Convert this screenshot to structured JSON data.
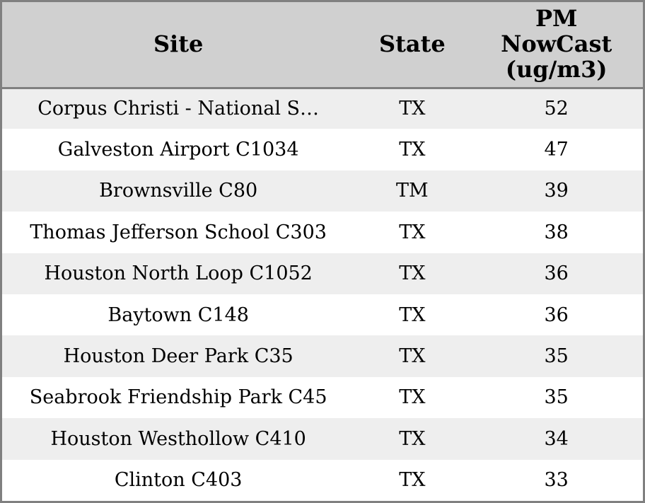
{
  "colors": {
    "header_bg": "#d0d0d0",
    "row_alt_bg": "#eeeeee",
    "row_bg": "#ffffff",
    "border": "#808080",
    "text": "#000000"
  },
  "chart_data": {
    "type": "table",
    "columns": [
      "Site",
      "State",
      "PM NowCast (ug/m3)"
    ],
    "header": {
      "site": "Site",
      "state": "State",
      "pm_lines": [
        "PM",
        "NowCast",
        "(ug/m3)"
      ]
    },
    "rows": [
      {
        "site": "Corpus Christi - National S…",
        "state": "TX",
        "pm": 52
      },
      {
        "site": "Galveston Airport C1034",
        "state": "TX",
        "pm": 47
      },
      {
        "site": "Brownsville C80",
        "state": "TM",
        "pm": 39
      },
      {
        "site": "Thomas Jefferson School C303",
        "state": "TX",
        "pm": 38
      },
      {
        "site": "Houston North Loop C1052",
        "state": "TX",
        "pm": 36
      },
      {
        "site": "Baytown C148",
        "state": "TX",
        "pm": 36
      },
      {
        "site": "Houston Deer Park C35",
        "state": "TX",
        "pm": 35
      },
      {
        "site": "Seabrook Friendship Park C45",
        "state": "TX",
        "pm": 35
      },
      {
        "site": "Houston Westhollow C410",
        "state": "TX",
        "pm": 34
      },
      {
        "site": "Clinton C403",
        "state": "TX",
        "pm": 33
      }
    ]
  }
}
